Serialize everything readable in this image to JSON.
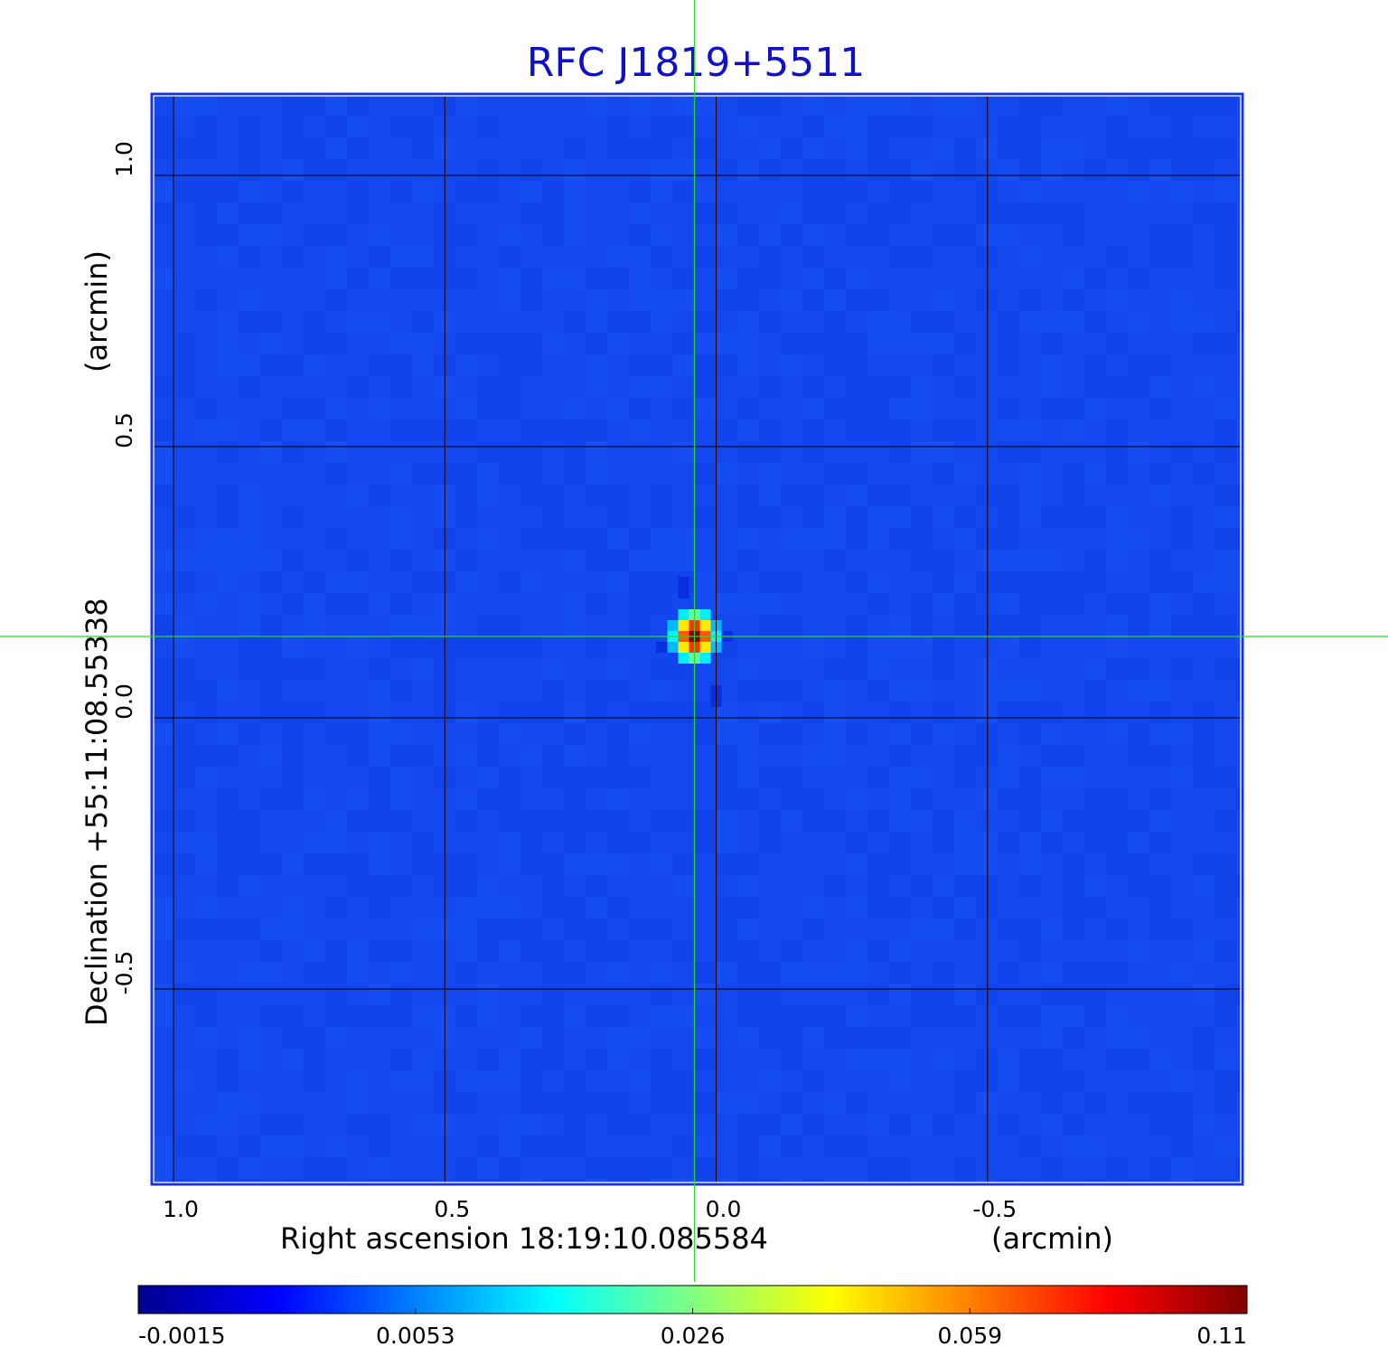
{
  "chart_data": {
    "type": "heatmap",
    "title": "RFC J1819+5511",
    "xlabel": "Right ascension  18:19:10.085584",
    "xlabel_unit": "(arcmin)",
    "ylabel": "Declination  +55:11:08.55338",
    "ylabel_unit": "(arcmin)",
    "xlim": [
      1.04,
      -0.97
    ],
    "ylim": [
      -0.86,
      1.15
    ],
    "x_ticks": [
      {
        "value": 1.0,
        "label": "1.0"
      },
      {
        "value": 0.5,
        "label": "0.5"
      },
      {
        "value": 0.0,
        "label": "0.0"
      },
      {
        "value": -0.5,
        "label": "-0.5"
      }
    ],
    "y_ticks": [
      {
        "value": 1.0,
        "label": "1.0"
      },
      {
        "value": 0.5,
        "label": "0.5"
      },
      {
        "value": 0.0,
        "label": "0.0"
      },
      {
        "value": -0.5,
        "label": "-0.5"
      }
    ],
    "grid": true,
    "crosshair": {
      "x": 0.04,
      "y": 0.15
    },
    "source_peak": {
      "x": 0.04,
      "y": 0.15,
      "value": 0.11
    },
    "background_level": 0.0,
    "colorbar": {
      "position": "bottom",
      "scale": "nonlinear",
      "min": -0.0015,
      "max": 0.11,
      "ticks": [
        {
          "value": -0.0015,
          "label": "-0.0015"
        },
        {
          "value": 0.0053,
          "label": "0.0053"
        },
        {
          "value": 0.026,
          "label": "0.026"
        },
        {
          "value": 0.059,
          "label": "0.059"
        },
        {
          "value": 0.11,
          "label": "0.11"
        }
      ]
    },
    "colormap_colors": [
      "#00008f",
      "#0000ff",
      "#0080ff",
      "#00ffff",
      "#80ff80",
      "#ffff00",
      "#ff8000",
      "#ff0000",
      "#800000"
    ],
    "background_color": "#1347f0",
    "crosshair_color": "#22dd22",
    "title_color": "#1010cc"
  }
}
